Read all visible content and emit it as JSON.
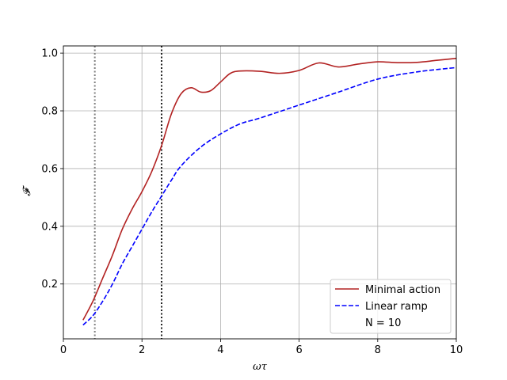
{
  "chart_data": {
    "type": "line",
    "xlabel": "ωτ",
    "ylabel": "𝓕",
    "xlim": [
      0,
      10
    ],
    "ylim": [
      0.01,
      1.025
    ],
    "grid": true,
    "x_ticks": [
      0,
      2,
      4,
      6,
      8,
      10
    ],
    "y_ticks": [
      0.2,
      0.4,
      0.6,
      0.8,
      1.0
    ],
    "x_tick_labels": [
      "0",
      "2",
      "4",
      "6",
      "8",
      "10"
    ],
    "y_tick_labels": [
      "0.2",
      "0.4",
      "0.6",
      "0.8",
      "1.0"
    ],
    "legend_position": "lower-right",
    "series": [
      {
        "name": "Minimal action",
        "color": "#b22222",
        "style": "solid",
        "x": [
          0.5,
          0.75,
          1.0,
          1.25,
          1.5,
          1.75,
          2.0,
          2.25,
          2.5,
          2.75,
          3.0,
          3.25,
          3.5,
          3.75,
          4.0,
          4.25,
          4.5,
          5.0,
          5.5,
          6.0,
          6.5,
          7.0,
          7.5,
          8.0,
          8.5,
          9.0,
          9.5,
          10.0
        ],
        "y": [
          0.075,
          0.14,
          0.22,
          0.3,
          0.39,
          0.46,
          0.52,
          0.59,
          0.68,
          0.79,
          0.86,
          0.88,
          0.865,
          0.87,
          0.9,
          0.93,
          0.938,
          0.937,
          0.93,
          0.94,
          0.966,
          0.952,
          0.962,
          0.97,
          0.967,
          0.968,
          0.975,
          0.982
        ]
      },
      {
        "name": "Linear ramp",
        "color": "#0000ff",
        "style": "dashed",
        "x": [
          0.5,
          0.75,
          1.0,
          1.25,
          1.5,
          1.75,
          2.0,
          2.25,
          2.5,
          2.75,
          3.0,
          3.5,
          4.0,
          4.5,
          5.0,
          6.0,
          7.0,
          8.0,
          9.0,
          10.0
        ],
        "y": [
          0.058,
          0.09,
          0.14,
          0.2,
          0.27,
          0.33,
          0.39,
          0.45,
          0.505,
          0.56,
          0.61,
          0.675,
          0.72,
          0.755,
          0.775,
          0.82,
          0.865,
          0.91,
          0.935,
          0.95
        ]
      }
    ],
    "vlines": [
      {
        "x": 0.8,
        "color": "#808080",
        "style": "dotted"
      },
      {
        "x": 2.5,
        "color": "#222222",
        "style": "dotted"
      }
    ],
    "legend_extra": "N = 10"
  }
}
